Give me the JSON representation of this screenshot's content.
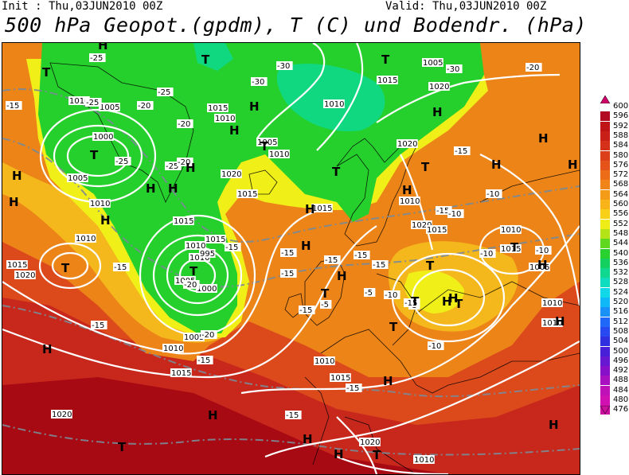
{
  "header": {
    "init": "Init : Thu,03JUN2010 00Z",
    "valid": "Valid: Thu,03JUN2010 00Z",
    "title": "500 hPa Geopot.(gpdm), T (C) und Bodendr. (hPa)"
  },
  "colors": {
    "deep_red": "#a80a14",
    "red": "#c8281c",
    "orange_red": "#dc4a1c",
    "orange": "#ec8418",
    "yellow_orange": "#f4b81c",
    "yellow": "#f0f018",
    "green": "#26d02c",
    "cyan_green": "#10d880"
  },
  "legend": [
    {
      "value": "600",
      "color": "#cc0066"
    },
    {
      "value": "596",
      "color": "#b20a22"
    },
    {
      "value": "592",
      "color": "#be1418"
    },
    {
      "value": "588",
      "color": "#c82018"
    },
    {
      "value": "584",
      "color": "#d4301a"
    },
    {
      "value": "580",
      "color": "#dc401a"
    },
    {
      "value": "576",
      "color": "#e4541a"
    },
    {
      "value": "572",
      "color": "#ec6c18"
    },
    {
      "value": "568",
      "color": "#f08418"
    },
    {
      "value": "564",
      "color": "#f49c18"
    },
    {
      "value": "560",
      "color": "#f8b418"
    },
    {
      "value": "556",
      "color": "#f8d018"
    },
    {
      "value": "552",
      "color": "#f0ec18"
    },
    {
      "value": "548",
      "color": "#b4e418"
    },
    {
      "value": "544",
      "color": "#60d820"
    },
    {
      "value": "540",
      "color": "#28d030"
    },
    {
      "value": "536",
      "color": "#14d060"
    },
    {
      "value": "532",
      "color": "#10d890"
    },
    {
      "value": "528",
      "color": "#10dcc0"
    },
    {
      "value": "524",
      "color": "#10d8e8"
    },
    {
      "value": "520",
      "color": "#10b8f8"
    },
    {
      "value": "516",
      "color": "#1890f8"
    },
    {
      "value": "512",
      "color": "#2068f8"
    },
    {
      "value": "508",
      "color": "#2848f0"
    },
    {
      "value": "504",
      "color": "#3030e0"
    },
    {
      "value": "500",
      "color": "#4820d8"
    },
    {
      "value": "496",
      "color": "#6818d0"
    },
    {
      "value": "492",
      "color": "#8810c8"
    },
    {
      "value": "488",
      "color": "#a810c0"
    },
    {
      "value": "484",
      "color": "#c010b8"
    },
    {
      "value": "480",
      "color": "#d010b0"
    },
    {
      "value": "476",
      "color": "#c8109c"
    }
  ],
  "pressure_labels": [
    "1010",
    "1005",
    "1000",
    "1005",
    "1010",
    "1010",
    "1015",
    "1020",
    "1015",
    "1010",
    "1015",
    "1010",
    "1005",
    "1000",
    "995",
    "1005",
    "1010",
    "1015",
    "1020",
    "1015",
    "1010",
    "1020",
    "1015",
    "1005",
    "1010",
    "1005",
    "1015",
    "1020",
    "1010",
    "1020",
    "1015",
    "1010",
    "1020",
    "1015",
    "1010",
    "1015",
    "1005",
    "1010",
    "1010",
    "1010",
    "1015",
    "1020",
    "1010"
  ],
  "temp_labels": [
    "-25",
    "-25",
    "-20",
    "-25",
    "-20",
    "-25",
    "-30",
    "-30",
    "-30",
    "-20",
    "-15",
    "-20",
    "-25",
    "-15",
    "-15",
    "-15",
    "-15",
    "-15",
    "-20",
    "-15",
    "-15",
    "-15",
    "-15",
    "-10",
    "-10",
    "-10",
    "-10",
    "-5",
    "-5",
    "-10",
    "-5",
    "-15",
    "-15",
    "-20",
    "-15",
    "-15",
    "-15",
    "-15",
    "-10"
  ],
  "highs": [
    "H",
    "H",
    "H",
    "H",
    "H",
    "H",
    "H",
    "H",
    "H",
    "H",
    "H",
    "H",
    "H",
    "H",
    "H",
    "H",
    "H",
    "H",
    "H",
    "H",
    "H",
    "H",
    "H",
    "H",
    "H",
    "H",
    "H"
  ],
  "lows": [
    "T",
    "T",
    "T",
    "T",
    "T",
    "T",
    "T",
    "T",
    "T",
    "T",
    "T",
    "T",
    "T",
    "T",
    "T",
    "T",
    "T"
  ]
}
